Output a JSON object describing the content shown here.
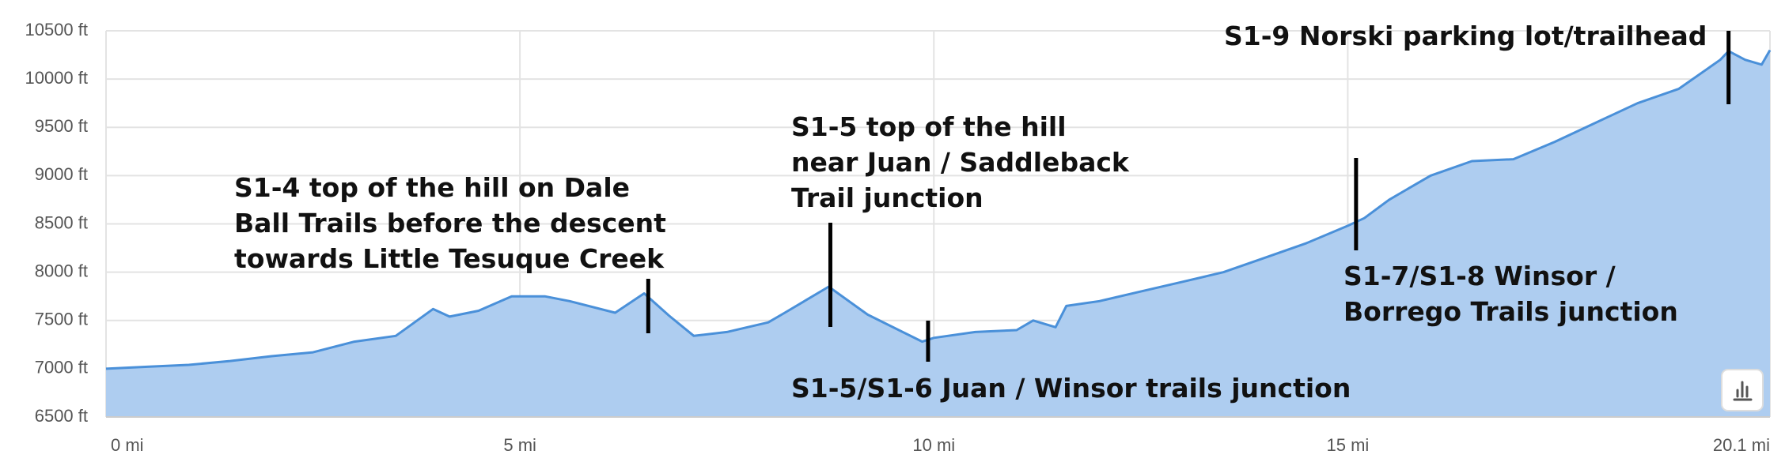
{
  "chart_data": {
    "type": "area",
    "x": [
      0,
      0.5,
      1,
      1.5,
      2,
      2.5,
      3,
      3.5,
      3.95,
      4.15,
      4.5,
      4.9,
      5.3,
      5.6,
      6.15,
      6.5,
      6.8,
      7.1,
      7.5,
      8.0,
      8.2,
      8.73,
      9.2,
      9.86,
      10,
      10.5,
      11,
      11.2,
      11.47,
      11.6,
      12,
      12.5,
      13,
      13.5,
      14,
      14.5,
      15,
      15.2,
      15.5,
      16,
      16.5,
      17,
      17.5,
      18,
      18.5,
      19,
      19.5,
      19.6,
      19.8,
      20,
      20.1
    ],
    "values": [
      7000,
      7020,
      7040,
      7080,
      7130,
      7170,
      7280,
      7340,
      7618,
      7540,
      7600,
      7750,
      7750,
      7700,
      7580,
      7780,
      7550,
      7340,
      7380,
      7480,
      7580,
      7850,
      7560,
      7280,
      7320,
      7380,
      7400,
      7500,
      7430,
      7650,
      7700,
      7800,
      7900,
      8000,
      8150,
      8300,
      8480,
      8560,
      8750,
      9000,
      9150,
      9170,
      9350,
      9550,
      9750,
      9900,
      10200,
      10290,
      10200,
      10150,
      10300
    ],
    "color": "#4a90d9",
    "fill": "#aecdf0",
    "xlim": [
      0,
      20.1
    ],
    "xticks": [
      {
        "value": 0,
        "label": "0 mi"
      },
      {
        "value": 5,
        "label": "5 mi"
      },
      {
        "value": 10,
        "label": "10 mi"
      },
      {
        "value": 15,
        "label": "15 mi"
      },
      {
        "value": 20.1,
        "label": "20.1 mi"
      }
    ],
    "ylim": [
      6500,
      10500
    ],
    "yticks": [
      {
        "value": 6500,
        "label": "6500 ft"
      },
      {
        "value": 7000,
        "label": "7000 ft"
      },
      {
        "value": 7500,
        "label": "7500 ft"
      },
      {
        "value": 8000,
        "label": "8000 ft"
      },
      {
        "value": 8500,
        "label": "8500 ft"
      },
      {
        "value": 9000,
        "label": "9000 ft"
      },
      {
        "value": 9500,
        "label": "9500 ft"
      },
      {
        "value": 10000,
        "label": "10000 ft"
      },
      {
        "value": 10500,
        "label": "10500 ft"
      }
    ],
    "grid": true,
    "annotations": [
      {
        "x": 6.55,
        "text": [
          "S1-4 top of the hill on Dale",
          "Ball Trails before the descent",
          "towards Little Tesuque Creek"
        ]
      },
      {
        "x": 8.75,
        "text": [
          "S1-5 top of the hill",
          "near Juan / Saddleback",
          "Trail junction"
        ]
      },
      {
        "x": 9.93,
        "text": [
          "S1-5/S1-6 Juan / Winsor trails junction"
        ]
      },
      {
        "x": 15.1,
        "text": [
          "S1-7/S1-8 Winsor /",
          "Borrego Trails junction"
        ]
      },
      {
        "x": 19.6,
        "text": [
          "S1-9 Norski parking lot/trailhead"
        ]
      }
    ]
  }
}
